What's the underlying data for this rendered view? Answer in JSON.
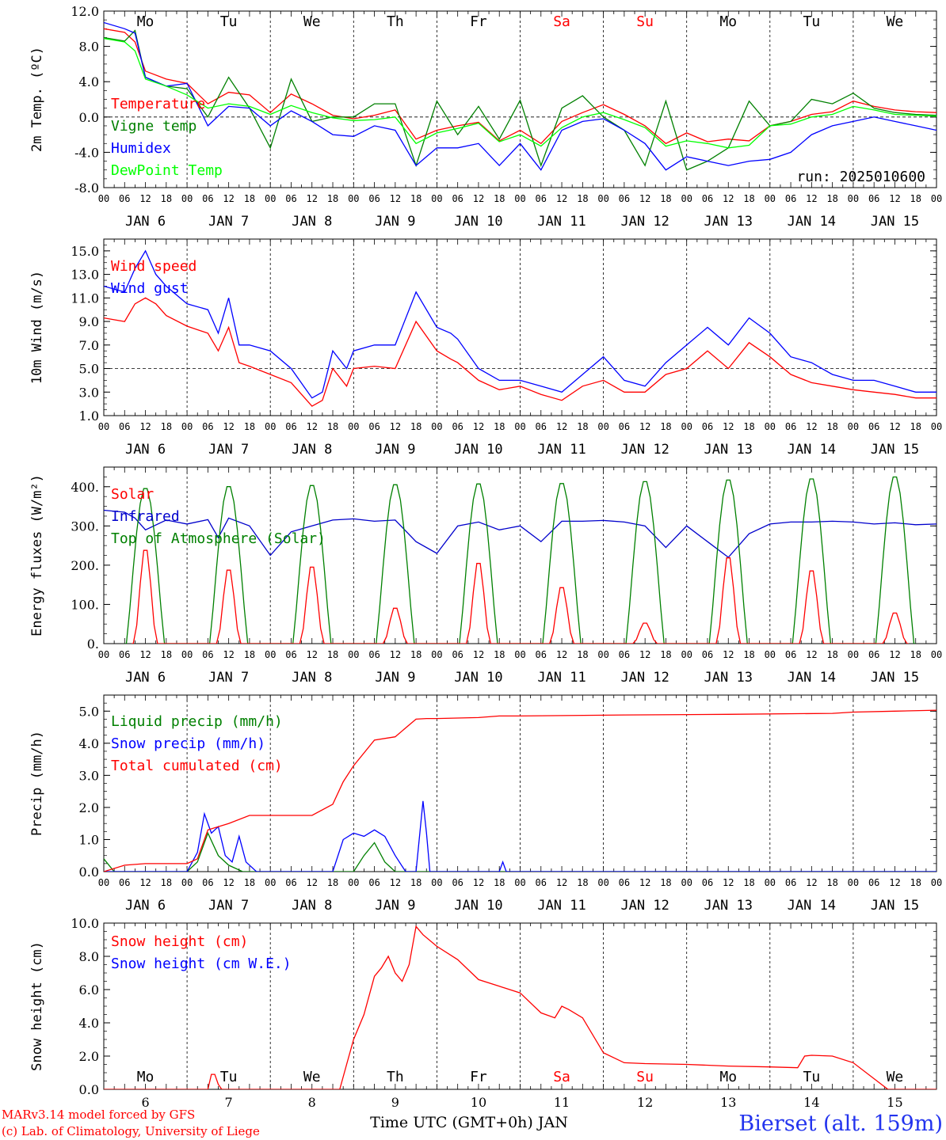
{
  "weekdays": [
    "Mo",
    "Tu",
    "We",
    "Th",
    "Fr",
    "Sa",
    "Su",
    "Mo",
    "Tu",
    "We"
  ],
  "weekday_colors": [
    "#000000",
    "#000000",
    "#000000",
    "#000000",
    "#000000",
    "#ff0000",
    "#ff0000",
    "#000000",
    "#000000",
    "#000000"
  ],
  "hour_ticks": [
    "00",
    "06",
    "12",
    "18"
  ],
  "day_labels": [
    "JAN  6",
    "JAN  7",
    "JAN  8",
    "JAN  9",
    "JAN 10",
    "JAN 11",
    "JAN 12",
    "JAN 13",
    "JAN 14",
    "JAN 15"
  ],
  "bottom_day_numbers": [
    "6",
    "7",
    "8",
    "9",
    "10",
    "11",
    "12",
    "13",
    "14",
    "15"
  ],
  "xlabel": "Time UTC (GMT+0h) JAN",
  "run_label": "run: 2025010600",
  "footer_left": [
    "MARv3.14 model forced by GFS",
    "(c) Lab. of Climatology, University of Liege"
  ],
  "station": "Bierset (alt. 159m)",
  "chart_data": [
    {
      "type": "line",
      "ylabel": "2m Temp. (ºC)",
      "ylim": [
        -8,
        12
      ],
      "yticks": [
        "-8.0",
        "-4.0",
        "0.0",
        "4.0",
        "8.0",
        "12.0"
      ],
      "ytick_values": [
        -8,
        -4,
        0,
        4,
        8,
        12
      ],
      "reference_line": 0,
      "x_unit": "hours since JAN 6 00 UTC",
      "series": [
        {
          "name": "Temperature",
          "color": "#ff0000",
          "x": [
            0,
            6,
            9,
            12,
            18,
            24,
            30,
            36,
            42,
            48,
            54,
            60,
            66,
            72,
            78,
            84,
            90,
            96,
            102,
            108,
            114,
            120,
            126,
            132,
            138,
            144,
            150,
            156,
            162,
            168,
            174,
            180,
            186,
            192,
            198,
            204,
            210,
            216,
            222,
            228,
            234,
            240
          ],
          "values": [
            10.0,
            9.6,
            8.5,
            5.2,
            4.3,
            3.8,
            1.5,
            2.8,
            2.5,
            0.5,
            2.6,
            1.5,
            0.2,
            -0.2,
            0.2,
            0.8,
            -2.5,
            -1.5,
            -1.0,
            -0.6,
            -2.7,
            -1.5,
            -3.0,
            -0.5,
            0.5,
            1.4,
            0.3,
            -1.0,
            -3.0,
            -1.8,
            -2.8,
            -2.5,
            -2.7,
            -1.0,
            -0.5,
            0.3,
            0.6,
            1.8,
            1.2,
            0.8,
            0.6,
            0.5
          ]
        },
        {
          "name": "Vigne temp",
          "color": "#008000",
          "x": [
            0,
            6,
            9,
            12,
            18,
            24,
            30,
            36,
            42,
            48,
            54,
            60,
            66,
            72,
            78,
            84,
            90,
            96,
            102,
            108,
            114,
            120,
            126,
            132,
            138,
            144,
            150,
            156,
            162,
            168,
            174,
            180,
            186,
            192,
            198,
            204,
            210,
            216,
            222,
            228,
            234,
            240
          ],
          "values": [
            9.0,
            8.6,
            9.8,
            4.5,
            3.5,
            3.2,
            0.0,
            4.5,
            1.0,
            -3.5,
            4.3,
            -0.5,
            0.0,
            0.0,
            1.5,
            1.5,
            -5.5,
            1.8,
            -2.0,
            1.2,
            -2.5,
            1.9,
            -5.5,
            1.0,
            2.4,
            0.0,
            -1.5,
            -5.5,
            1.8,
            -6.0,
            -5.0,
            -3.5,
            1.8,
            -1.0,
            -0.5,
            2.0,
            1.5,
            2.7,
            1.0,
            0.5,
            0.3,
            0.2
          ]
        },
        {
          "name": "Humidex",
          "color": "#0000ff",
          "x": [
            0,
            6,
            9,
            12,
            18,
            24,
            30,
            36,
            42,
            48,
            54,
            60,
            66,
            72,
            78,
            84,
            90,
            96,
            102,
            108,
            114,
            120,
            126,
            132,
            138,
            144,
            150,
            156,
            162,
            168,
            174,
            180,
            186,
            192,
            198,
            204,
            210,
            216,
            222,
            228,
            234,
            240
          ],
          "values": [
            10.7,
            10.0,
            9.5,
            4.5,
            3.5,
            3.8,
            -1.0,
            1.2,
            1.0,
            -1.0,
            0.7,
            -0.5,
            -2.0,
            -2.2,
            -1.0,
            -1.5,
            -5.5,
            -3.5,
            -3.5,
            -3.0,
            -5.5,
            -3.0,
            -6.0,
            -1.5,
            -0.5,
            -0.2,
            -1.5,
            -3.0,
            -6.0,
            -4.5,
            -5.0,
            -5.5,
            -5.0,
            -4.8,
            -4.0,
            -2.0,
            -1.0,
            -0.5,
            0.0,
            -0.5,
            -1.0,
            -1.5
          ]
        },
        {
          "name": "DewPoint Temp",
          "color": "#00ff00",
          "x": [
            0,
            6,
            9,
            12,
            18,
            24,
            30,
            36,
            42,
            48,
            54,
            60,
            66,
            72,
            78,
            84,
            90,
            96,
            102,
            108,
            114,
            120,
            126,
            132,
            138,
            144,
            150,
            156,
            162,
            168,
            174,
            180,
            186,
            192,
            198,
            204,
            210,
            216,
            222,
            228,
            234,
            240
          ],
          "values": [
            8.9,
            8.5,
            7.5,
            4.3,
            3.5,
            2.5,
            1.0,
            1.5,
            1.2,
            0.3,
            1.3,
            0.5,
            -0.1,
            -0.4,
            -0.3,
            0.0,
            -3.0,
            -1.8,
            -1.3,
            -0.7,
            -2.8,
            -2.0,
            -3.3,
            -1.2,
            0.0,
            0.5,
            -0.3,
            -1.2,
            -3.3,
            -2.7,
            -3.0,
            -3.5,
            -3.2,
            -1.0,
            -0.8,
            0.0,
            0.3,
            1.2,
            0.8,
            0.3,
            0.2,
            0.1
          ]
        }
      ],
      "legend_placement": "top-left"
    },
    {
      "type": "line",
      "ylabel": "10m Wind (m/s)",
      "ylim": [
        1,
        16
      ],
      "yticks": [
        "1.0",
        "3.0",
        "5.0",
        "7.0",
        "9.0",
        "11.0",
        "13.0",
        "15.0"
      ],
      "ytick_values": [
        1,
        3,
        5,
        7,
        9,
        11,
        13,
        15
      ],
      "reference_line": 5,
      "x_unit": "hours since JAN 6 00 UTC",
      "series": [
        {
          "name": "Wind speed",
          "color": "#ff0000",
          "x": [
            0,
            6,
            9,
            12,
            15,
            18,
            24,
            30,
            33,
            36,
            39,
            42,
            48,
            54,
            60,
            63,
            66,
            70,
            72,
            78,
            84,
            90,
            96,
            100,
            102,
            108,
            114,
            120,
            126,
            132,
            138,
            144,
            150,
            156,
            162,
            168,
            174,
            180,
            186,
            192,
            198,
            204,
            210,
            216,
            222,
            228,
            234,
            240
          ],
          "values": [
            9.3,
            9.0,
            10.5,
            11.0,
            10.5,
            9.5,
            8.6,
            8.0,
            6.5,
            8.5,
            5.5,
            5.2,
            4.5,
            3.8,
            1.8,
            2.3,
            5.0,
            3.5,
            5.0,
            5.2,
            5.0,
            9.0,
            6.5,
            5.8,
            5.5,
            4.0,
            3.2,
            3.5,
            2.8,
            2.3,
            3.5,
            4.0,
            3.0,
            3.0,
            4.5,
            5.0,
            6.5,
            5.0,
            7.2,
            6.0,
            4.5,
            3.8,
            3.5,
            3.2,
            3.0,
            2.8,
            2.5,
            2.5
          ]
        },
        {
          "name": "Wind gust",
          "color": "#0000ff",
          "x": [
            0,
            6,
            9,
            12,
            15,
            18,
            24,
            30,
            33,
            36,
            39,
            42,
            48,
            54,
            60,
            63,
            66,
            70,
            72,
            78,
            84,
            90,
            96,
            100,
            102,
            108,
            114,
            120,
            126,
            132,
            138,
            144,
            150,
            156,
            162,
            168,
            174,
            180,
            186,
            192,
            198,
            204,
            210,
            216,
            222,
            228,
            234,
            240
          ],
          "values": [
            12.0,
            11.5,
            13.5,
            15.0,
            13.0,
            12.0,
            10.5,
            10.0,
            8.0,
            11.0,
            7.0,
            7.0,
            6.5,
            5.0,
            2.5,
            3.0,
            6.5,
            5.0,
            6.5,
            7.0,
            7.0,
            11.5,
            8.5,
            8.0,
            7.5,
            5.0,
            4.0,
            4.0,
            3.5,
            3.0,
            4.5,
            6.0,
            4.0,
            3.5,
            5.5,
            7.0,
            8.5,
            7.0,
            9.3,
            8.0,
            6.0,
            5.5,
            4.5,
            4.0,
            4.0,
            3.5,
            3.0,
            3.0
          ]
        }
      ],
      "legend_placement": "top-left"
    },
    {
      "type": "line",
      "ylabel": "Energy fluxes (W/m²)",
      "ylim": [
        0,
        450
      ],
      "yticks": [
        "0.",
        "100.",
        "200.",
        "300.",
        "400."
      ],
      "ytick_values": [
        0,
        100,
        200,
        300,
        400
      ],
      "x_unit": "hours since JAN 6 00 UTC",
      "day_peaks": {
        "solar": [
          250,
          197,
          205,
          95,
          215,
          150,
          55,
          230,
          195,
          82
        ],
        "toa": [
          400,
          405,
          408,
          410,
          412,
          413,
          418,
          422,
          425,
          430
        ]
      },
      "series": [
        {
          "name": "Solar",
          "color": "#ff0000"
        },
        {
          "name": "Infrared",
          "color": "#0000cc",
          "x": [
            0,
            6,
            9,
            12,
            18,
            24,
            30,
            33,
            36,
            42,
            48,
            54,
            60,
            66,
            72,
            78,
            84,
            90,
            96,
            102,
            108,
            114,
            120,
            126,
            132,
            138,
            144,
            150,
            156,
            162,
            168,
            174,
            180,
            186,
            192,
            198,
            204,
            210,
            216,
            222,
            228,
            234,
            240
          ],
          "values": [
            340,
            335,
            320,
            290,
            315,
            305,
            316,
            270,
            320,
            300,
            225,
            285,
            300,
            315,
            318,
            312,
            315,
            260,
            230,
            300,
            310,
            290,
            300,
            260,
            312,
            312,
            314,
            310,
            300,
            245,
            300,
            260,
            220,
            280,
            305,
            310,
            310,
            312,
            310,
            305,
            308,
            303,
            305
          ]
        },
        {
          "name": "Top of Atmosphere (Solar)",
          "color": "#008000"
        }
      ],
      "legend_placement": "top-left"
    },
    {
      "type": "line",
      "ylabel": "Precip (mm/h)",
      "ylim": [
        0,
        5.5
      ],
      "yticks": [
        "0.0",
        "1.0",
        "2.0",
        "3.0",
        "4.0",
        "5.0"
      ],
      "ytick_values": [
        0,
        1,
        2,
        3,
        4,
        5
      ],
      "x_unit": "hours since JAN 6 00 UTC",
      "series": [
        {
          "name": "Liquid precip (mm/h)",
          "color": "#008000",
          "x": [
            0,
            3,
            6,
            24,
            27,
            30,
            33,
            36,
            40,
            44,
            48,
            72,
            75,
            78,
            81,
            84,
            90,
            96,
            240
          ],
          "values": [
            0.4,
            0.0,
            0.0,
            0.0,
            0.3,
            1.2,
            0.5,
            0.2,
            0.0,
            0.0,
            0.0,
            0.0,
            0.5,
            0.9,
            0.3,
            0.0,
            0.0,
            0.0,
            0.0
          ]
        },
        {
          "name": "Snow precip (mm/h)",
          "color": "#0000ff",
          "x": [
            0,
            24,
            27,
            29,
            31,
            33,
            35,
            37,
            39,
            41,
            44,
            48,
            66,
            69,
            72,
            75,
            78,
            81,
            84,
            87,
            90,
            92,
            93,
            94,
            96,
            114,
            115,
            116,
            120,
            216,
            240
          ],
          "values": [
            0.0,
            0.0,
            0.6,
            1.8,
            1.2,
            1.4,
            0.5,
            0.3,
            1.1,
            0.3,
            0.0,
            0.0,
            0.0,
            1.0,
            1.2,
            1.1,
            1.3,
            1.1,
            0.5,
            0.0,
            0.0,
            2.2,
            1.2,
            0.0,
            0.0,
            0.0,
            0.3,
            0.0,
            0.0,
            0.0,
            0.0
          ]
        },
        {
          "name": "Total cumulated (cm)",
          "color": "#ff0000",
          "x": [
            0,
            6,
            12,
            24,
            27,
            30,
            36,
            42,
            48,
            60,
            66,
            69,
            72,
            78,
            84,
            90,
            93,
            96,
            108,
            114,
            120,
            150,
            180,
            210,
            216,
            228,
            240
          ],
          "values": [
            0.0,
            0.2,
            0.25,
            0.25,
            0.4,
            1.3,
            1.5,
            1.75,
            1.75,
            1.75,
            2.1,
            2.8,
            3.3,
            4.1,
            4.2,
            4.75,
            4.77,
            4.77,
            4.8,
            4.85,
            4.85,
            4.88,
            4.9,
            4.93,
            4.97,
            5.0,
            5.03
          ]
        }
      ],
      "legend_placement": "top-left"
    },
    {
      "type": "line",
      "ylabel": "Snow height (cm)",
      "ylim": [
        0,
        10
      ],
      "yticks": [
        "0.0",
        "2.0",
        "4.0",
        "6.0",
        "8.0",
        "10.0"
      ],
      "ytick_values": [
        0,
        2,
        4,
        6,
        8,
        10
      ],
      "x_unit": "hours since JAN 6 00 UTC",
      "series": [
        {
          "name": "Snow height (cm)",
          "color": "#ff0000",
          "x": [
            0,
            30,
            31,
            32,
            33,
            34,
            36,
            68,
            70,
            72,
            75,
            78,
            80,
            82,
            84,
            86,
            88,
            90,
            92,
            96,
            102,
            108,
            114,
            120,
            126,
            130,
            132,
            134,
            138,
            144,
            150,
            156,
            168,
            180,
            192,
            200,
            202,
            204,
            210,
            216,
            226,
            240
          ],
          "values": [
            0.0,
            0.0,
            0.9,
            0.9,
            0.3,
            0.0,
            0.0,
            0.0,
            1.5,
            3.0,
            4.5,
            6.8,
            7.3,
            8.0,
            7.0,
            6.5,
            7.5,
            9.8,
            9.3,
            8.6,
            7.8,
            6.6,
            6.2,
            5.8,
            4.6,
            4.3,
            5.0,
            4.8,
            4.3,
            2.2,
            1.6,
            1.55,
            1.5,
            1.4,
            1.35,
            1.3,
            2.0,
            2.05,
            2.0,
            1.6,
            0.0,
            0.0
          ]
        },
        {
          "name": "Snow height (cm W.E.)",
          "color": "#0000ff"
        }
      ],
      "legend_placement": "top-left"
    }
  ]
}
